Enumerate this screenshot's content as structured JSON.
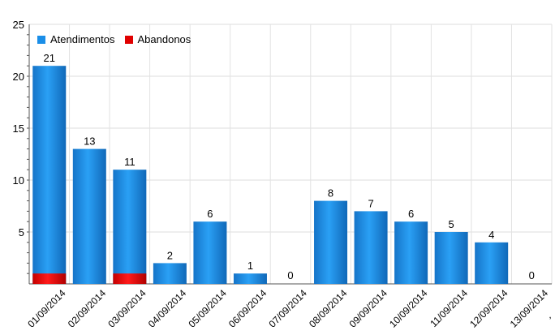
{
  "chart_data": {
    "type": "bar",
    "title": "",
    "xlabel": "",
    "ylabel": "",
    "ylim": [
      0,
      25
    ],
    "yticks": [
      5,
      10,
      15,
      20,
      25
    ],
    "grid": true,
    "legend": "top-left",
    "categories": [
      "01/09/2014",
      "02/09/2014",
      "03/09/2014",
      "04/09/2014",
      "05/09/2014",
      "06/09/2014",
      "07/09/2014",
      "08/09/2014",
      "09/09/2014",
      "10/09/2014",
      "11/09/2014",
      "12/09/2014",
      "13/09/2014"
    ],
    "series": [
      {
        "name": "Atendimentos",
        "color": "#1a8ee8",
        "values": [
          21,
          13,
          11,
          2,
          6,
          1,
          0,
          8,
          7,
          6,
          5,
          4,
          0
        ]
      },
      {
        "name": "Abandonos",
        "color": "#e00000",
        "values": [
          1,
          0,
          1,
          0,
          0,
          0,
          0,
          0,
          0,
          0,
          0,
          0,
          0
        ]
      }
    ],
    "data_labels": [
      "21",
      "13",
      "11",
      "2",
      "6",
      "1",
      "0",
      "8",
      "7",
      "6",
      "5",
      "4",
      "0"
    ],
    "corner_mark": ","
  }
}
